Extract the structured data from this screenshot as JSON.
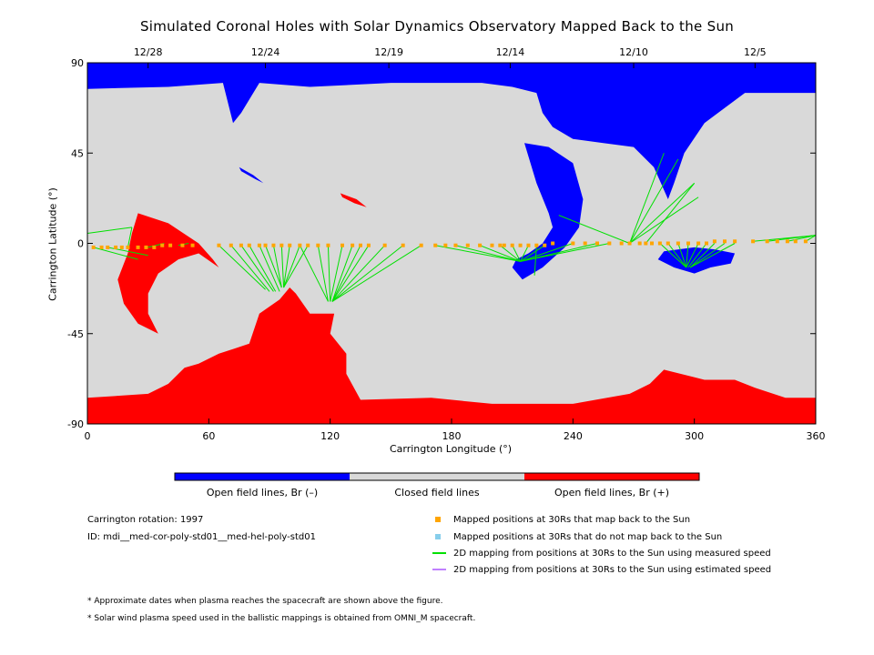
{
  "title": "Simulated Coronal Holes with Solar Dynamics Observatory Mapped Back to the Sun",
  "chart_data": {
    "type": "map",
    "xlabel": "Carrington Longitude (°)",
    "ylabel": "Carrington Latitude (°)",
    "xlim": [
      0,
      360
    ],
    "ylim": [
      -90,
      90
    ],
    "x_ticks": [
      0,
      60,
      120,
      180,
      240,
      300,
      360
    ],
    "y_ticks": [
      90,
      45,
      0,
      -45,
      -90
    ],
    "y_tick_labels": [
      "90",
      "45",
      "0",
      "-45",
      "-90"
    ],
    "top_axis": {
      "dates": [
        "12/28",
        "12/24",
        "12/19",
        "12/14",
        "12/10",
        "12/5"
      ],
      "longitudes": [
        30,
        88,
        149,
        209,
        270,
        330
      ]
    },
    "colors": {
      "open_negative": "#0000ff",
      "closed": "#d9d9d9",
      "open_positive": "#ff0000",
      "mapped_points": "#ffa500",
      "unmapped_points": "#87ceeb",
      "measured_speed_line": "#00e000",
      "estimated_speed_line": "#c080ff"
    },
    "regions": {
      "north_polar_hole_blue": [
        [
          0,
          90
        ],
        [
          360,
          90
        ],
        [
          360,
          75
        ],
        [
          325,
          75
        ],
        [
          305,
          60
        ],
        [
          295,
          45
        ],
        [
          290,
          30
        ],
        [
          287,
          22
        ],
        [
          280,
          38
        ],
        [
          270,
          48
        ],
        [
          255,
          50
        ],
        [
          240,
          52
        ],
        [
          230,
          58
        ],
        [
          225,
          65
        ],
        [
          222,
          75
        ],
        [
          210,
          78
        ],
        [
          195,
          80
        ],
        [
          150,
          80
        ],
        [
          110,
          78
        ],
        [
          85,
          80
        ],
        [
          76,
          65
        ],
        [
          72,
          60
        ],
        [
          67,
          80
        ],
        [
          40,
          78
        ],
        [
          0,
          77
        ]
      ],
      "north_finger_blue": [
        [
          216,
          50
        ],
        [
          222,
          30
        ],
        [
          228,
          15
        ],
        [
          230,
          8
        ],
        [
          225,
          0
        ],
        [
          218,
          -5
        ],
        [
          212,
          -8
        ],
        [
          210,
          -12
        ],
        [
          215,
          -18
        ],
        [
          225,
          -12
        ],
        [
          236,
          -2
        ],
        [
          243,
          8
        ],
        [
          245,
          22
        ],
        [
          240,
          40
        ],
        [
          228,
          48
        ]
      ],
      "south_polar_hole_red": [
        [
          0,
          -90
        ],
        [
          360,
          -90
        ],
        [
          360,
          -77
        ],
        [
          345,
          -77
        ],
        [
          330,
          -72
        ],
        [
          320,
          -68
        ],
        [
          305,
          -68
        ],
        [
          285,
          -63
        ],
        [
          278,
          -70
        ],
        [
          268,
          -75
        ],
        [
          240,
          -80
        ],
        [
          200,
          -80
        ],
        [
          170,
          -77
        ],
        [
          135,
          -78
        ],
        [
          128,
          -65
        ],
        [
          128,
          -55
        ],
        [
          120,
          -45
        ],
        [
          122,
          -35
        ],
        [
          110,
          -35
        ],
        [
          103,
          -25
        ],
        [
          100,
          -22
        ],
        [
          95,
          -28
        ],
        [
          85,
          -35
        ],
        [
          80,
          -50
        ],
        [
          65,
          -55
        ],
        [
          55,
          -60
        ],
        [
          48,
          -62
        ],
        [
          40,
          -70
        ],
        [
          30,
          -75
        ],
        [
          0,
          -77
        ]
      ],
      "red_patch_west": [
        [
          25,
          15
        ],
        [
          40,
          10
        ],
        [
          55,
          0
        ],
        [
          62,
          -8
        ],
        [
          65,
          -12
        ],
        [
          55,
          -5
        ],
        [
          45,
          -8
        ],
        [
          35,
          -15
        ],
        [
          30,
          -25
        ],
        [
          30,
          -35
        ],
        [
          35,
          -45
        ],
        [
          25,
          -40
        ],
        [
          18,
          -30
        ],
        [
          15,
          -18
        ],
        [
          20,
          -5
        ],
        [
          22,
          5
        ]
      ],
      "blue_patch_east": [
        [
          285,
          -4
        ],
        [
          300,
          -2
        ],
        [
          310,
          -3
        ],
        [
          320,
          -5
        ],
        [
          318,
          -10
        ],
        [
          308,
          -12
        ],
        [
          300,
          -15
        ],
        [
          290,
          -12
        ],
        [
          282,
          -8
        ]
      ],
      "blue_small_1": [
        [
          75,
          38
        ],
        [
          82,
          34
        ],
        [
          87,
          30
        ],
        [
          83,
          32
        ],
        [
          76,
          36
        ]
      ],
      "red_small_1": [
        [
          125,
          25
        ],
        [
          133,
          22
        ],
        [
          138,
          18
        ],
        [
          132,
          20
        ],
        [
          126,
          23
        ]
      ]
    },
    "mapped_point_longitudes": [
      3,
      7,
      10,
      14,
      17,
      20,
      25,
      29,
      33,
      37,
      41,
      47,
      52,
      65,
      71,
      76,
      80,
      85,
      88,
      92,
      96,
      100,
      105,
      109,
      114,
      119,
      126,
      131,
      135,
      139,
      147,
      156,
      165,
      172,
      177,
      182,
      188,
      194,
      200,
      204,
      206,
      210,
      214,
      218,
      222,
      226,
      230,
      240,
      246,
      252,
      258,
      264,
      268,
      273,
      276,
      279,
      283,
      287,
      292,
      297,
      302,
      306,
      310,
      315,
      320,
      329,
      336,
      341,
      346,
      350,
      355
    ],
    "mapped_point_latitudes": [
      -2,
      -2,
      -2,
      -2,
      -2,
      -2,
      -2,
      -2,
      -2,
      -1,
      -1,
      -1,
      -1,
      -1,
      -1,
      -1,
      -1,
      -1,
      -1,
      -1,
      -1,
      -1,
      -1,
      -1,
      -1,
      -1,
      -1,
      -1,
      -1,
      -1,
      -1,
      -1,
      -1,
      -1,
      -1,
      -1,
      -1,
      -1,
      -1,
      -1,
      -1,
      -1,
      -1,
      -1,
      -1,
      -1,
      0,
      0,
      0,
      0,
      0,
      0,
      0,
      0,
      0,
      0,
      0,
      0,
      0,
      0,
      0,
      0,
      1,
      1,
      1,
      1,
      1,
      1,
      1,
      1,
      1
    ],
    "mapping_lines": [
      [
        [
          0,
          5
        ],
        [
          22,
          8
        ]
      ],
      [
        [
          3,
          -2
        ],
        [
          25,
          -8
        ]
      ],
      [
        [
          10,
          -2
        ],
        [
          30,
          -6
        ]
      ],
      [
        [
          20,
          -2
        ],
        [
          22,
          8
        ]
      ],
      [
        [
          30,
          -2
        ],
        [
          38,
          0
        ]
      ],
      [
        [
          45,
          -1
        ],
        [
          50,
          0
        ]
      ],
      [
        [
          65,
          -1
        ],
        [
          88,
          -23
        ]
      ],
      [
        [
          71,
          -1
        ],
        [
          90,
          -24
        ]
      ],
      [
        [
          76,
          -1
        ],
        [
          92,
          -24
        ]
      ],
      [
        [
          80,
          -1
        ],
        [
          93,
          -24
        ]
      ],
      [
        [
          85,
          -1
        ],
        [
          95,
          -24
        ]
      ],
      [
        [
          88,
          -1
        ],
        [
          96,
          -22
        ]
      ],
      [
        [
          92,
          -1
        ],
        [
          96,
          -22
        ]
      ],
      [
        [
          96,
          -1
        ],
        [
          97,
          -22
        ]
      ],
      [
        [
          100,
          -1
        ],
        [
          97,
          -22
        ]
      ],
      [
        [
          105,
          -1
        ],
        [
          97,
          -22
        ]
      ],
      [
        [
          109,
          -1
        ],
        [
          97,
          -22
        ]
      ],
      [
        [
          114,
          -1
        ],
        [
          119,
          -29
        ]
      ],
      [
        [
          119,
          -1
        ],
        [
          120,
          -29
        ]
      ],
      [
        [
          126,
          -1
        ],
        [
          120,
          -29
        ]
      ],
      [
        [
          131,
          -1
        ],
        [
          121,
          -29
        ]
      ],
      [
        [
          135,
          -1
        ],
        [
          121,
          -29
        ]
      ],
      [
        [
          139,
          -1
        ],
        [
          121,
          -29
        ]
      ],
      [
        [
          147,
          -1
        ],
        [
          121,
          -29
        ]
      ],
      [
        [
          156,
          -1
        ],
        [
          121,
          -29
        ]
      ],
      [
        [
          165,
          -1
        ],
        [
          121,
          -29
        ]
      ],
      [
        [
          105,
          -1
        ],
        [
          119,
          -29
        ]
      ],
      [
        [
          172,
          -1
        ],
        [
          214,
          -9
        ]
      ],
      [
        [
          182,
          -1
        ],
        [
          214,
          -9
        ]
      ],
      [
        [
          194,
          -1
        ],
        [
          214,
          -9
        ]
      ],
      [
        [
          204,
          -1
        ],
        [
          214,
          -9
        ]
      ],
      [
        [
          210,
          -1
        ],
        [
          214,
          -9
        ]
      ],
      [
        [
          218,
          -1
        ],
        [
          214,
          -9
        ]
      ],
      [
        [
          226,
          -1
        ],
        [
          214,
          -9
        ]
      ],
      [
        [
          240,
          0
        ],
        [
          214,
          -9
        ]
      ],
      [
        [
          252,
          0
        ],
        [
          214,
          -9
        ]
      ],
      [
        [
          258,
          0
        ],
        [
          214,
          -9
        ]
      ],
      [
        [
          222,
          -1
        ],
        [
          221,
          -16
        ]
      ],
      [
        [
          268,
          0
        ],
        [
          233,
          14
        ]
      ],
      [
        [
          268,
          0
        ],
        [
          285,
          45
        ]
      ],
      [
        [
          268,
          0
        ],
        [
          300,
          30
        ]
      ],
      [
        [
          268,
          0
        ],
        [
          302,
          23
        ]
      ],
      [
        [
          268,
          0
        ],
        [
          292,
          42
        ]
      ],
      [
        [
          276,
          0
        ],
        [
          300,
          30
        ]
      ],
      [
        [
          283,
          0
        ],
        [
          296,
          -12
        ]
      ],
      [
        [
          287,
          0
        ],
        [
          296,
          -12
        ]
      ],
      [
        [
          292,
          0
        ],
        [
          296,
          -12
        ]
      ],
      [
        [
          297,
          0
        ],
        [
          296,
          -12
        ]
      ],
      [
        [
          302,
          0
        ],
        [
          296,
          -12
        ]
      ],
      [
        [
          306,
          0
        ],
        [
          297,
          -12
        ]
      ],
      [
        [
          310,
          0
        ],
        [
          298,
          -12
        ]
      ],
      [
        [
          315,
          0
        ],
        [
          298,
          -12
        ]
      ],
      [
        [
          320,
          0
        ],
        [
          298,
          -12
        ]
      ],
      [
        [
          329,
          1
        ],
        [
          360,
          4
        ]
      ],
      [
        [
          336,
          1
        ],
        [
          360,
          4
        ]
      ],
      [
        [
          346,
          1
        ],
        [
          360,
          4
        ]
      ],
      [
        [
          355,
          1
        ],
        [
          360,
          4
        ]
      ]
    ]
  },
  "colorbar": {
    "labels": [
      "Open field lines, Br (–)",
      "Closed field lines",
      "Open field lines, Br (+)"
    ]
  },
  "info": {
    "rotation": "Carrington rotation: 1997",
    "id": "ID: mdi__med-cor-poly-std01__med-hel-poly-std01"
  },
  "legend": [
    {
      "label": "Mapped positions at 30Rs that map back to the Sun",
      "symbol": "square",
      "color": "#ffa500"
    },
    {
      "label": "Mapped positions at 30Rs that do not map back to the Sun",
      "symbol": "square",
      "color": "#87ceeb"
    },
    {
      "label": "2D mapping from positions at 30Rs to the Sun using measured speed",
      "symbol": "line",
      "color": "#00e000"
    },
    {
      "label": "2D mapping from positions at 30Rs to the Sun using estimated speed",
      "symbol": "line",
      "color": "#c080ff"
    }
  ],
  "footnotes": [
    "* Approximate dates when plasma reaches the spacecraft are shown above the figure.",
    "* Solar wind plasma speed used in the ballistic mappings is obtained from OMNI_M spacecraft."
  ]
}
